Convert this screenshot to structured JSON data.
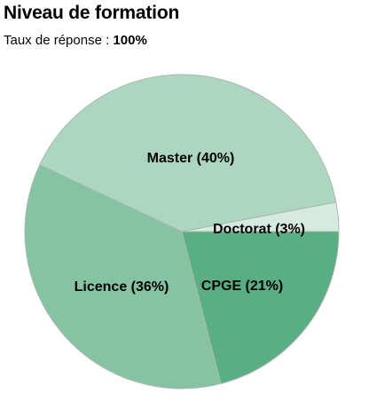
{
  "header": {
    "title": "Niveau de formation",
    "response_label": "Taux de réponse :",
    "response_value": "100%"
  },
  "chart_data": {
    "type": "pie",
    "start_angle_deg": 0,
    "direction": "clockwise",
    "slices": [
      {
        "label": "CPGE",
        "value": 21,
        "display": "CPGE (21%)",
        "color": "#5aae84"
      },
      {
        "label": "Licence",
        "value": 36,
        "display": "Licence (36%)",
        "color": "#86c3a5"
      },
      {
        "label": "Master",
        "value": 40,
        "display": "Master (40%)",
        "color": "#add6c0"
      },
      {
        "label": "Doctorat",
        "value": 3,
        "display": "Doctorat (3%)",
        "color": "#d6eadf"
      }
    ]
  }
}
